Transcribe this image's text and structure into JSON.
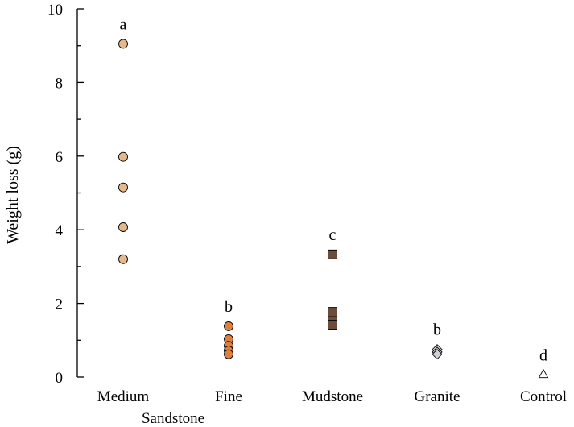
{
  "chart_data": {
    "type": "scatter",
    "title": "",
    "xlabel": "",
    "ylabel": "Weight loss (g)",
    "ylim": [
      0,
      10
    ],
    "y_ticks": [
      0,
      2,
      4,
      6,
      8,
      10
    ],
    "categories": [
      "Medium",
      "Fine",
      "Mudstone",
      "Granite",
      "Control"
    ],
    "group_label": "Sandstone",
    "grid": false,
    "legend": "none",
    "series": [
      {
        "category": "Medium",
        "marker": "circle",
        "color": "#e3b88a",
        "letter": "a",
        "values": [
          9.05,
          5.98,
          5.15,
          4.07,
          3.2
        ]
      },
      {
        "category": "Fine",
        "marker": "circle",
        "color": "#de7f3e",
        "letter": "b",
        "values": [
          1.38,
          1.03,
          0.85,
          0.72,
          0.62
        ]
      },
      {
        "category": "Mudstone",
        "marker": "square",
        "color": "#6b4d3b",
        "letter": "c",
        "values": [
          3.33,
          1.77,
          1.62,
          1.52,
          1.42
        ]
      },
      {
        "category": "Granite",
        "marker": "diamond",
        "color": "#cfd2d6",
        "letter": "b",
        "values": [
          0.75,
          0.68,
          0.62
        ]
      },
      {
        "category": "Control",
        "marker": "triangle",
        "color": "#ffffff",
        "letter": "d",
        "values": [
          0.05
        ]
      }
    ]
  }
}
